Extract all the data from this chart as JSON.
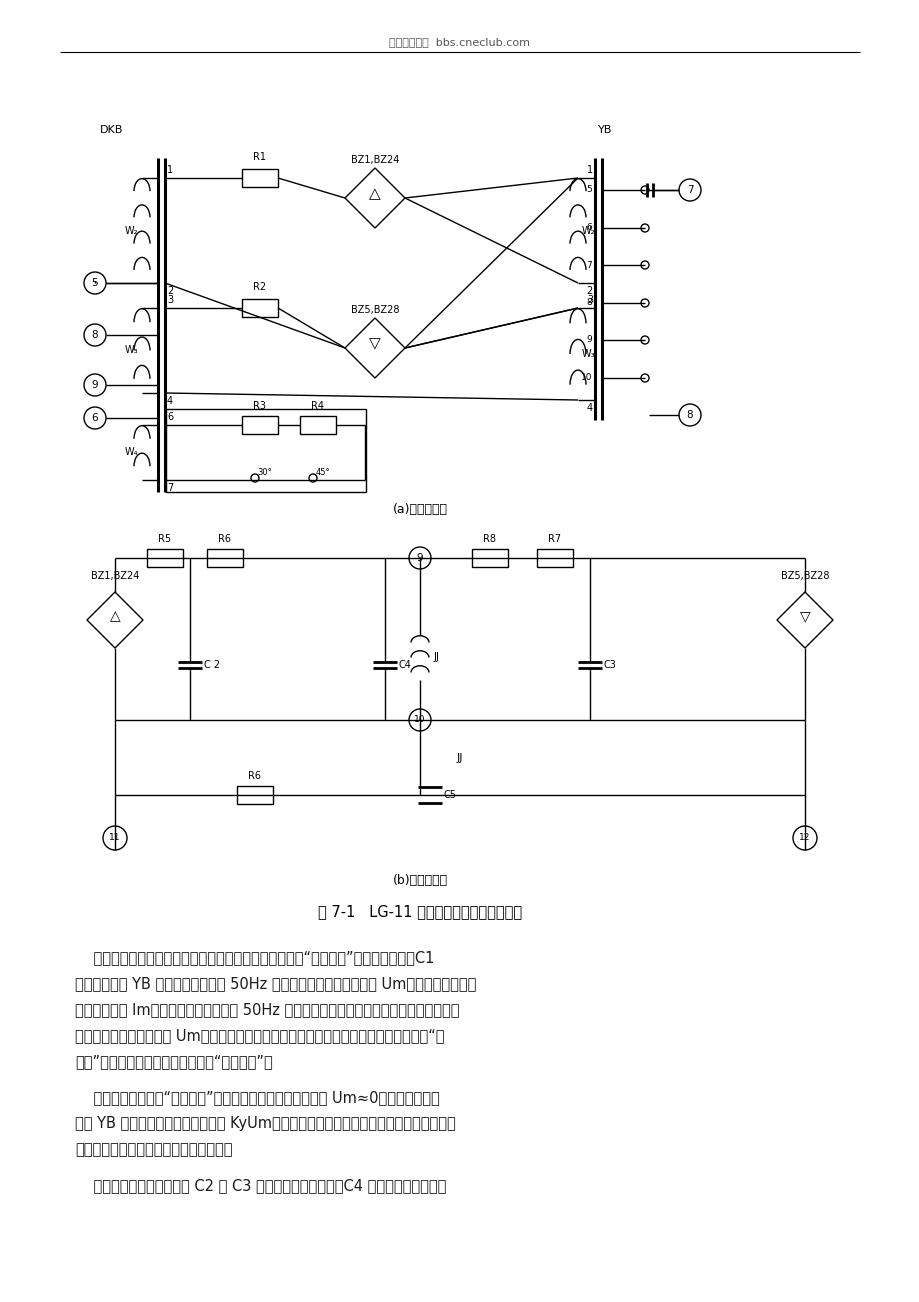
{
  "header_text": "北方电力论坛  bbs.cneclub.com",
  "page_bg": "#ffffff",
  "diagram_caption_a": "(a)交流回路图",
  "diagram_caption_b": "(b)直流回路图",
  "figure_caption": "图 7-1   LG-11 功率方向继电器原理接线图",
  "para1_lines": [
    "    为了消除电压死区，功率方向继电器的电压回路需加设“记忆回路”，就是需要电容C1",
    "与中间变压器 YB 的绕组电感构成对 50Hz 串联谐振回路。这样当电压 Um突然降低为零时，",
    "该回路中电流 Im并不立即消失，而是按 50Hz 谐振频率，经过几个周波后，逐渐衰减为零。",
    "而这个电流与故障前电压 Um同相，并且在谐振衰减过程中维持相位不变。因此，相当于“记",
    "住了”短路前的电压的相位，故称为“记忆回路”。"
  ],
  "para2_lines": [
    "    由于电压回路有了“记忆回路”的存在，当加于继电器的电压 Um≈0时，在一定的时",
    "间内 YB 的二次绕组端钮有电压分量 KyUm存在，就可以继续进行幅值的比较，因而消除了",
    "在正方向出口短路时继电器的电压死区。"
  ],
  "para3_lines": [
    "    在整流比较回路中，电容 C2 和 C3 主要是滤除二次谐波，C4 用来滤除高次谐波。"
  ],
  "text_color": "#1a1a1a",
  "font_size_body": 10.5,
  "font_size_header": 8,
  "font_size_caption": 9
}
